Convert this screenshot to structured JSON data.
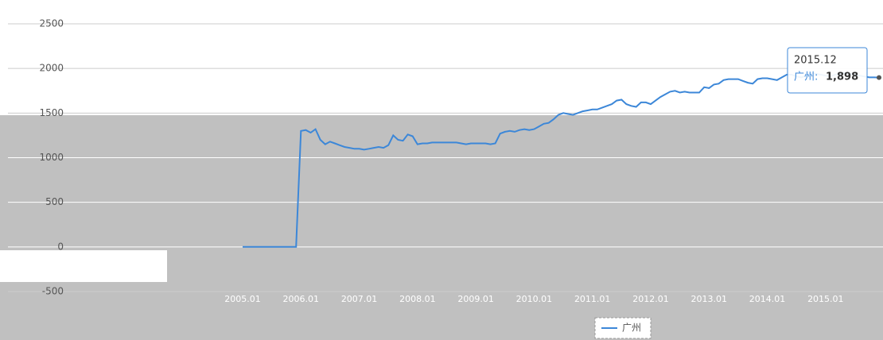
{
  "chart_data": {
    "type": "line",
    "categories": [
      "2005.01",
      null,
      null,
      null,
      null,
      null,
      null,
      null,
      null,
      null,
      null,
      null,
      "2006.01",
      null,
      null,
      null,
      null,
      null,
      null,
      null,
      null,
      null,
      null,
      null,
      "2007.01",
      null,
      null,
      null,
      null,
      null,
      null,
      null,
      null,
      null,
      null,
      null,
      "2008.01",
      null,
      null,
      null,
      null,
      null,
      null,
      null,
      null,
      null,
      null,
      null,
      "2009.01",
      null,
      null,
      null,
      null,
      null,
      null,
      null,
      null,
      null,
      null,
      null,
      "2010.01",
      null,
      null,
      null,
      null,
      null,
      null,
      null,
      null,
      null,
      null,
      null,
      "2011.01",
      null,
      null,
      null,
      null,
      null,
      null,
      null,
      null,
      null,
      null,
      null,
      "2012.01",
      null,
      null,
      null,
      null,
      null,
      null,
      null,
      null,
      null,
      null,
      null,
      "2013.01",
      null,
      null,
      null,
      null,
      null,
      null,
      null,
      null,
      null,
      null,
      null,
      "2014.01",
      null,
      null,
      null,
      null,
      null,
      null,
      null,
      null,
      null,
      null,
      null,
      "2015.01",
      null,
      null,
      null,
      null,
      null,
      null,
      null,
      null,
      null,
      null,
      "2015.12"
    ],
    "series": [
      {
        "name": "广州",
        "color": "#3c87d8",
        "values": [
          0,
          0,
          0,
          0,
          0,
          0,
          0,
          0,
          0,
          0,
          0,
          0,
          1300,
          1310,
          1280,
          1320,
          1200,
          1150,
          1180,
          1160,
          1140,
          1120,
          1110,
          1100,
          1100,
          1090,
          1100,
          1110,
          1120,
          1110,
          1140,
          1250,
          1200,
          1190,
          1260,
          1240,
          1150,
          1160,
          1160,
          1170,
          1170,
          1170,
          1170,
          1170,
          1170,
          1160,
          1150,
          1160,
          1160,
          1160,
          1160,
          1150,
          1160,
          1270,
          1290,
          1300,
          1290,
          1310,
          1320,
          1310,
          1320,
          1350,
          1380,
          1390,
          1430,
          1480,
          1500,
          1490,
          1480,
          1500,
          1520,
          1530,
          1540,
          1540,
          1560,
          1580,
          1600,
          1640,
          1650,
          1600,
          1580,
          1570,
          1620,
          1620,
          1600,
          1640,
          1680,
          1710,
          1740,
          1750,
          1730,
          1740,
          1730,
          1730,
          1730,
          1790,
          1780,
          1820,
          1830,
          1870,
          1880,
          1880,
          1880,
          1860,
          1840,
          1830,
          1880,
          1890,
          1890,
          1880,
          1870,
          1900,
          1930,
          1930,
          1910,
          1900,
          1920,
          1950,
          1940,
          1930,
          1920,
          1910,
          1930,
          1940,
          1950,
          1940,
          1930,
          1920,
          1910,
          1900,
          1900,
          1898
        ]
      }
    ],
    "ylim": [
      -500,
      2500
    ],
    "yticks": [
      -500,
      0,
      500,
      1000,
      1500,
      2000,
      2500
    ],
    "grid": true,
    "tooltip": {
      "series_label": "广州:",
      "value_label": "1,898"
    }
  }
}
